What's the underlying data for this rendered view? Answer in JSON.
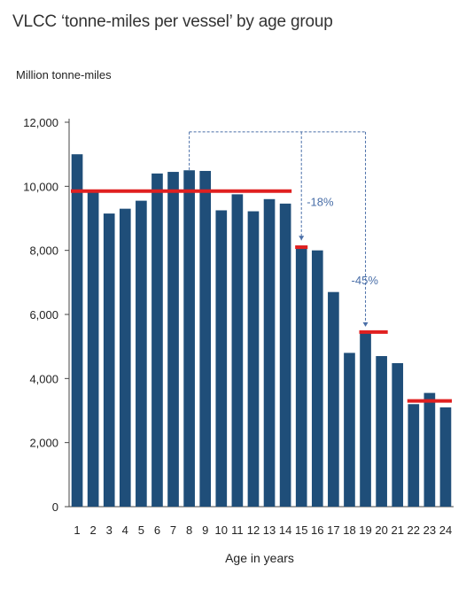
{
  "chart_data": {
    "type": "bar",
    "title": "VLCC ‘tonne-miles per vessel’ by age group",
    "ylabel": "Million tonne-miles",
    "xlabel": "Age in years",
    "categories": [
      "1",
      "2",
      "3",
      "4",
      "5",
      "6",
      "7",
      "8",
      "9",
      "10",
      "11",
      "12",
      "13",
      "14",
      "15",
      "16",
      "17",
      "18",
      "19",
      "20",
      "21",
      "22",
      "23",
      "24"
    ],
    "values": [
      11000,
      9850,
      9150,
      9300,
      9550,
      10400,
      10450,
      10500,
      10480,
      9250,
      9750,
      9220,
      9600,
      9460,
      8150,
      8000,
      6700,
      4800,
      5450,
      4700,
      4480,
      3200,
      3550,
      3100
    ],
    "ylim": [
      0,
      12000
    ],
    "yticks": [
      "0",
      "2,000",
      "4,000",
      "6,000",
      "8,000",
      "10,000",
      "12,000"
    ],
    "ytick_values": [
      0,
      2000,
      4000,
      6000,
      8000,
      10000,
      12000
    ],
    "bar_color": "#1f4e79",
    "reference_lines": [
      {
        "from": 1,
        "to": 14,
        "value": 9850
      },
      {
        "from": 15,
        "to": 15,
        "value": 8100
      },
      {
        "from": 19,
        "to": 20,
        "value": 5450
      },
      {
        "from": 22,
        "to": 24,
        "value": 3300
      }
    ],
    "reference_color": "#e02020",
    "annotations": [
      {
        "text": "-18%",
        "from_category": 8,
        "to_category": 15,
        "y_top": 11700,
        "y_bottom": 8150
      },
      {
        "text": "-45%",
        "from_category": 15,
        "to_category": 19,
        "y_top": 11700,
        "y_bottom": 5450
      }
    ],
    "annotation_color": "#4a6fa8",
    "grid": false,
    "legend": "none"
  }
}
